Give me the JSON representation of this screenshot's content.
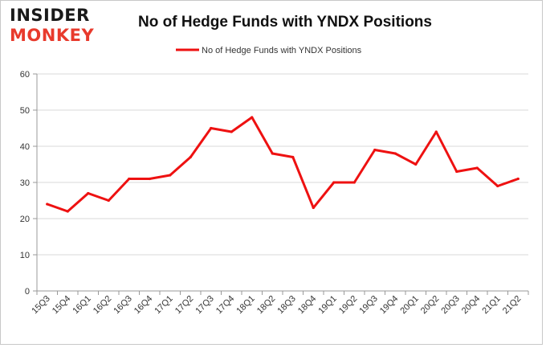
{
  "logo": {
    "line1": "INSIDER",
    "line2": "MONKEY"
  },
  "chart_data": {
    "type": "line",
    "title": "No of Hedge Funds with YNDX Positions",
    "xlabel": "",
    "ylabel": "",
    "categories": [
      "15Q3",
      "15Q4",
      "16Q1",
      "16Q2",
      "16Q3",
      "16Q4",
      "17Q1",
      "17Q2",
      "17Q3",
      "17Q4",
      "18Q1",
      "18Q2",
      "18Q3",
      "18Q4",
      "19Q1",
      "19Q2",
      "19Q3",
      "19Q4",
      "20Q1",
      "20Q2",
      "20Q3",
      "20Q4",
      "21Q1",
      "21Q2"
    ],
    "series": [
      {
        "name": "No of Hedge Funds with YNDX Positions",
        "color": "#ee1111",
        "values": [
          24,
          22,
          27,
          25,
          31,
          31,
          32,
          37,
          45,
          44,
          48,
          38,
          37,
          23,
          30,
          30,
          39,
          38,
          35,
          44,
          33,
          34,
          29,
          31
        ]
      }
    ],
    "ylim": [
      0,
      60
    ],
    "yticks": [
      0,
      10,
      20,
      30,
      40,
      50,
      60
    ],
    "grid": true,
    "legend": "top-center"
  }
}
